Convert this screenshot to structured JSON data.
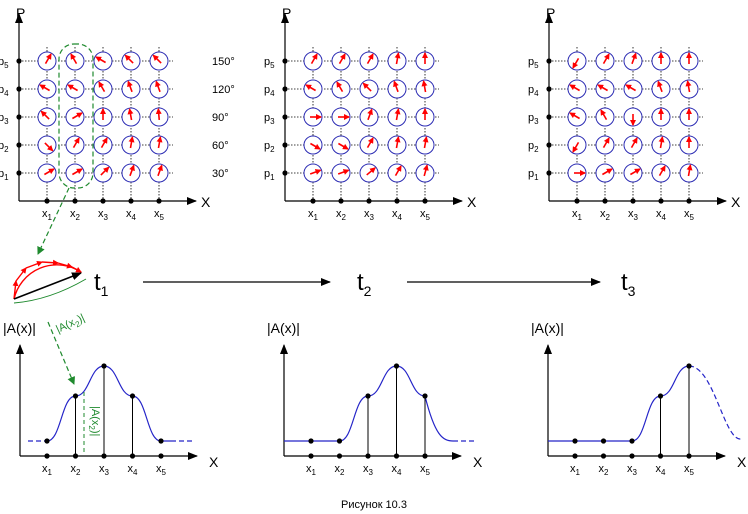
{
  "caption": "Рисунок 10.3",
  "axis": {
    "x_name": "X",
    "p_name": "P",
    "amp_name": "|A(x)|"
  },
  "x_labels": [
    {
      "base": "x",
      "sub": "1"
    },
    {
      "base": "x",
      "sub": "2"
    },
    {
      "base": "x",
      "sub": "3"
    },
    {
      "base": "x",
      "sub": "4"
    },
    {
      "base": "x",
      "sub": "5"
    }
  ],
  "p_labels": [
    {
      "base": "p",
      "sub": "5"
    },
    {
      "base": "p",
      "sub": "4"
    },
    {
      "base": "p",
      "sub": "3"
    },
    {
      "base": "p",
      "sub": "2"
    },
    {
      "base": "p",
      "sub": "1"
    }
  ],
  "phase_labels": [
    "150°",
    "120°",
    "90°",
    "60°",
    "30°"
  ],
  "times": [
    {
      "base": "t",
      "sub": "1"
    },
    {
      "base": "t",
      "sub": "2"
    },
    {
      "base": "t",
      "sub": "3"
    }
  ],
  "amp_callout": "|A(x2)|",
  "amp_callout_parts": {
    "pre": "|A(x",
    "sub": "2",
    "post": ")|"
  },
  "grids": [
    {
      "name": "t1-grid",
      "angles": [
        [
          60,
          120,
          150,
          135,
          135
        ],
        [
          150,
          150,
          120,
          110,
          110
        ],
        [
          135,
          30,
          90,
          100,
          95
        ],
        [
          -45,
          60,
          60,
          80,
          80
        ],
        [
          30,
          30,
          45,
          70,
          70
        ]
      ]
    },
    {
      "name": "t2-grid",
      "angles": [
        [
          60,
          60,
          60,
          80,
          90
        ],
        [
          150,
          120,
          135,
          110,
          100
        ],
        [
          0,
          0,
          70,
          80,
          90
        ],
        [
          -30,
          -30,
          60,
          80,
          80
        ],
        [
          20,
          20,
          40,
          60,
          75
        ]
      ]
    },
    {
      "name": "t3-grid",
      "angles": [
        [
          240,
          60,
          70,
          90,
          90
        ],
        [
          150,
          150,
          150,
          110,
          100
        ],
        [
          150,
          120,
          270,
          90,
          90
        ],
        [
          240,
          60,
          60,
          80,
          90
        ],
        [
          0,
          30,
          30,
          60,
          80
        ]
      ]
    }
  ],
  "amplitude_panels": [
    {
      "name": "amp-t1",
      "values": [
        0,
        0.6,
        1.0,
        0.6,
        0
      ],
      "dashed_left": true,
      "dashed_right": true
    },
    {
      "name": "amp-t2",
      "values": [
        0,
        0,
        0.6,
        1.0,
        0.6
      ],
      "dashed_left": false,
      "dashed_right": true
    },
    {
      "name": "amp-t3",
      "values": [
        0,
        0,
        0,
        0.6,
        1.0
      ],
      "dashed_left": false,
      "dashed_right": true
    }
  ],
  "colors": {
    "arrow": "#ff0000",
    "circle": "#2d2db4",
    "curve": "#2424c8",
    "callout": "#1f8a2e",
    "ink": "#000000"
  }
}
